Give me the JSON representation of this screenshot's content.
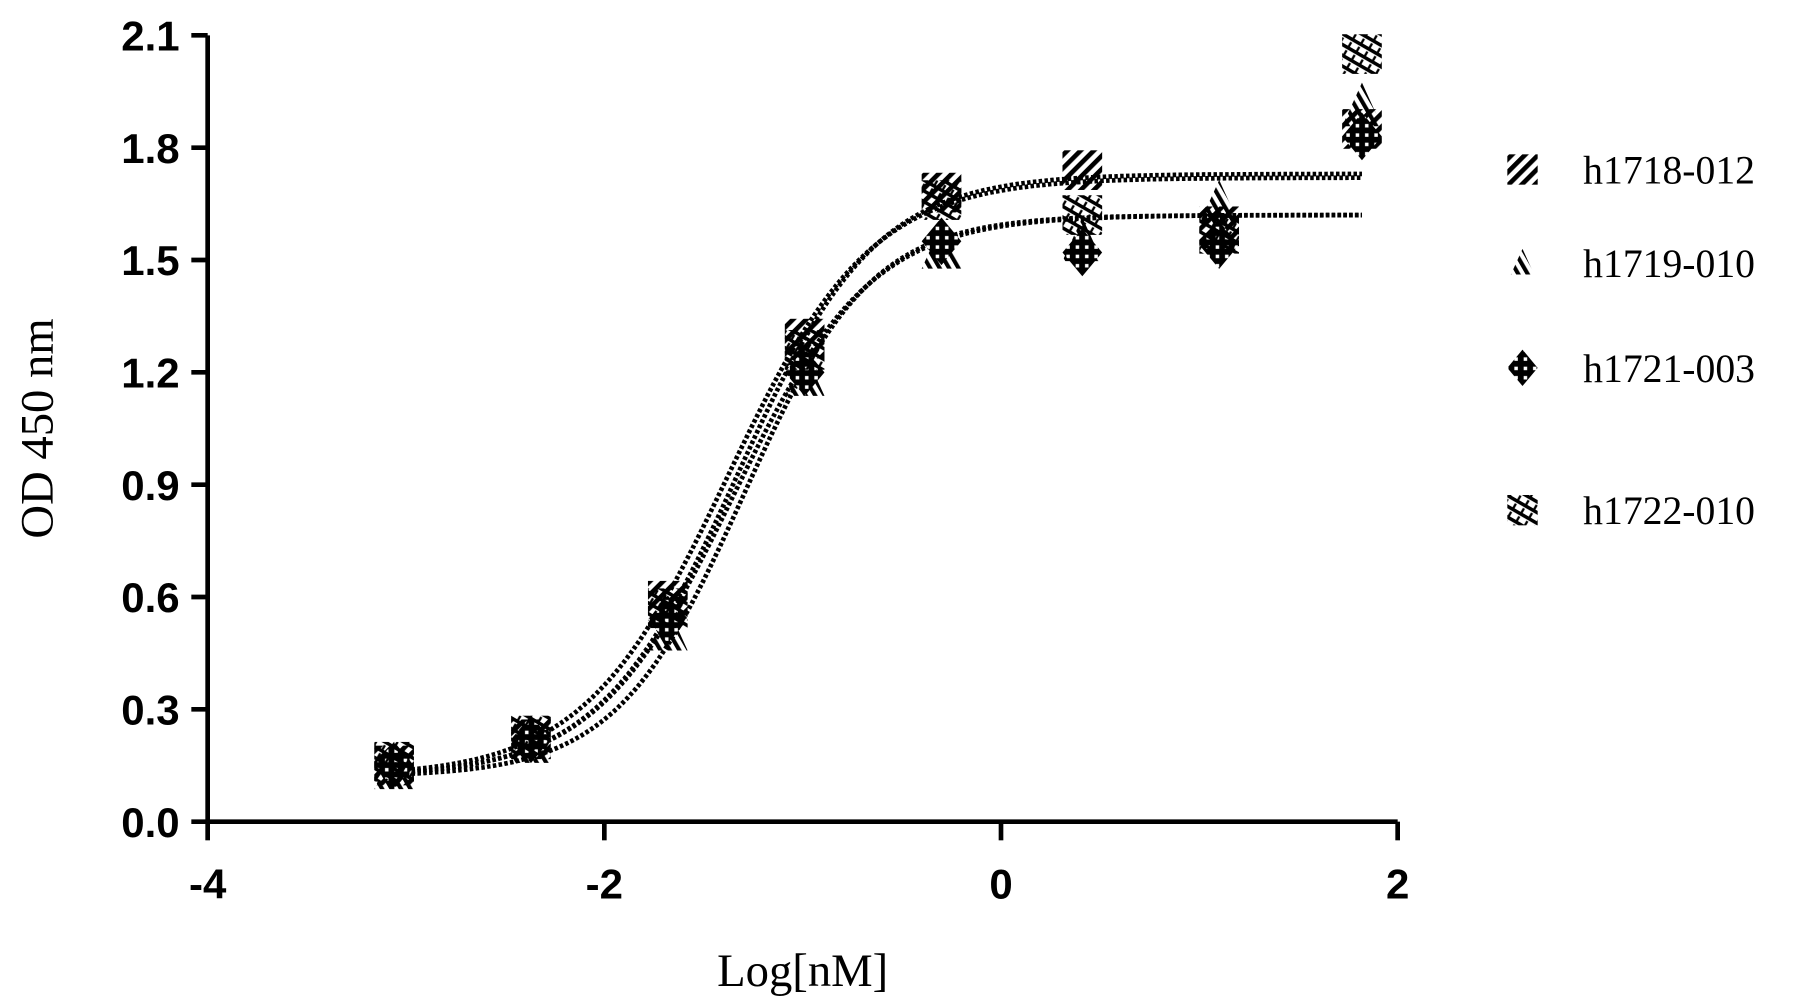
{
  "chart_data": {
    "type": "scatter",
    "title": "",
    "xlabel": "Log[nM]",
    "ylabel": "OD 450 nm",
    "xlim": [
      -4,
      2
    ],
    "ylim": [
      0.0,
      2.1
    ],
    "xticks": [
      "-4",
      "-2",
      "0",
      "2"
    ],
    "yticks": [
      "0.0",
      "0.3",
      "0.6",
      "0.9",
      "1.2",
      "1.5",
      "1.8",
      "2.1"
    ],
    "grid": false,
    "legend_position": "right",
    "x": [
      -3.06,
      -2.37,
      -1.68,
      -0.99,
      -0.3,
      0.41,
      1.1,
      1.82
    ],
    "series": [
      {
        "name": "h1718-012",
        "marker": "square-hatched",
        "values": [
          0.15,
          0.22,
          0.59,
          1.29,
          1.68,
          1.74,
          1.59,
          1.85
        ]
      },
      {
        "name": "h1719-010",
        "marker": "triangle-hatched",
        "values": [
          0.14,
          0.21,
          0.51,
          1.19,
          1.53,
          1.55,
          1.65,
          1.91
        ]
      },
      {
        "name": "h1721-003",
        "marker": "diamond-checkered",
        "values": [
          0.15,
          0.22,
          0.54,
          1.2,
          1.55,
          1.52,
          1.54,
          1.83
        ]
      },
      {
        "name": "h1722-010",
        "marker": "square-dotted",
        "values": [
          0.16,
          0.23,
          0.57,
          1.26,
          1.66,
          1.62,
          1.57,
          2.05
        ]
      }
    ],
    "color": "#000000"
  }
}
